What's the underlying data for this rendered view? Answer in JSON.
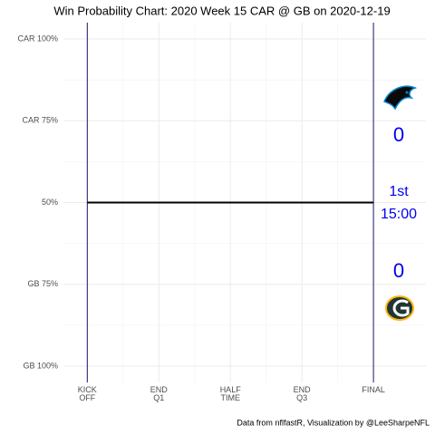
{
  "chart_data": {
    "type": "line",
    "title": "Win Probability Chart: 2020 Week 15 CAR @ GB on 2020-12-19",
    "caption": "Data from nflfastR, Visualization by @LeeSharpeNFL",
    "x": [
      0,
      60
    ],
    "series": [
      {
        "color": "#000000",
        "values": [
          50,
          50
        ]
      }
    ],
    "xlim": [
      -5,
      71
    ],
    "xticks": [
      {
        "value": 0,
        "label": "KICK\nOFF"
      },
      {
        "value": 15,
        "label": "END\nQ1"
      },
      {
        "value": 30,
        "label": "HALF\nTIME"
      },
      {
        "value": 45,
        "label": "END\nQ3"
      },
      {
        "value": 60,
        "label": "FINAL"
      }
    ],
    "ylim": [
      -5,
      105
    ],
    "yticks": [
      {
        "value": 100,
        "label": "CAR 100%"
      },
      {
        "value": 75,
        "label": "CAR 75%"
      },
      {
        "value": 50,
        "label": "50%"
      },
      {
        "value": 25,
        "label": "GB 75%"
      },
      {
        "value": 0,
        "label": "GB 100%"
      }
    ],
    "grid": true,
    "annotations": {
      "away_score": "0",
      "quarter": "1st",
      "clock": "15:00",
      "home_score": "0",
      "color": "#0000ee"
    }
  }
}
